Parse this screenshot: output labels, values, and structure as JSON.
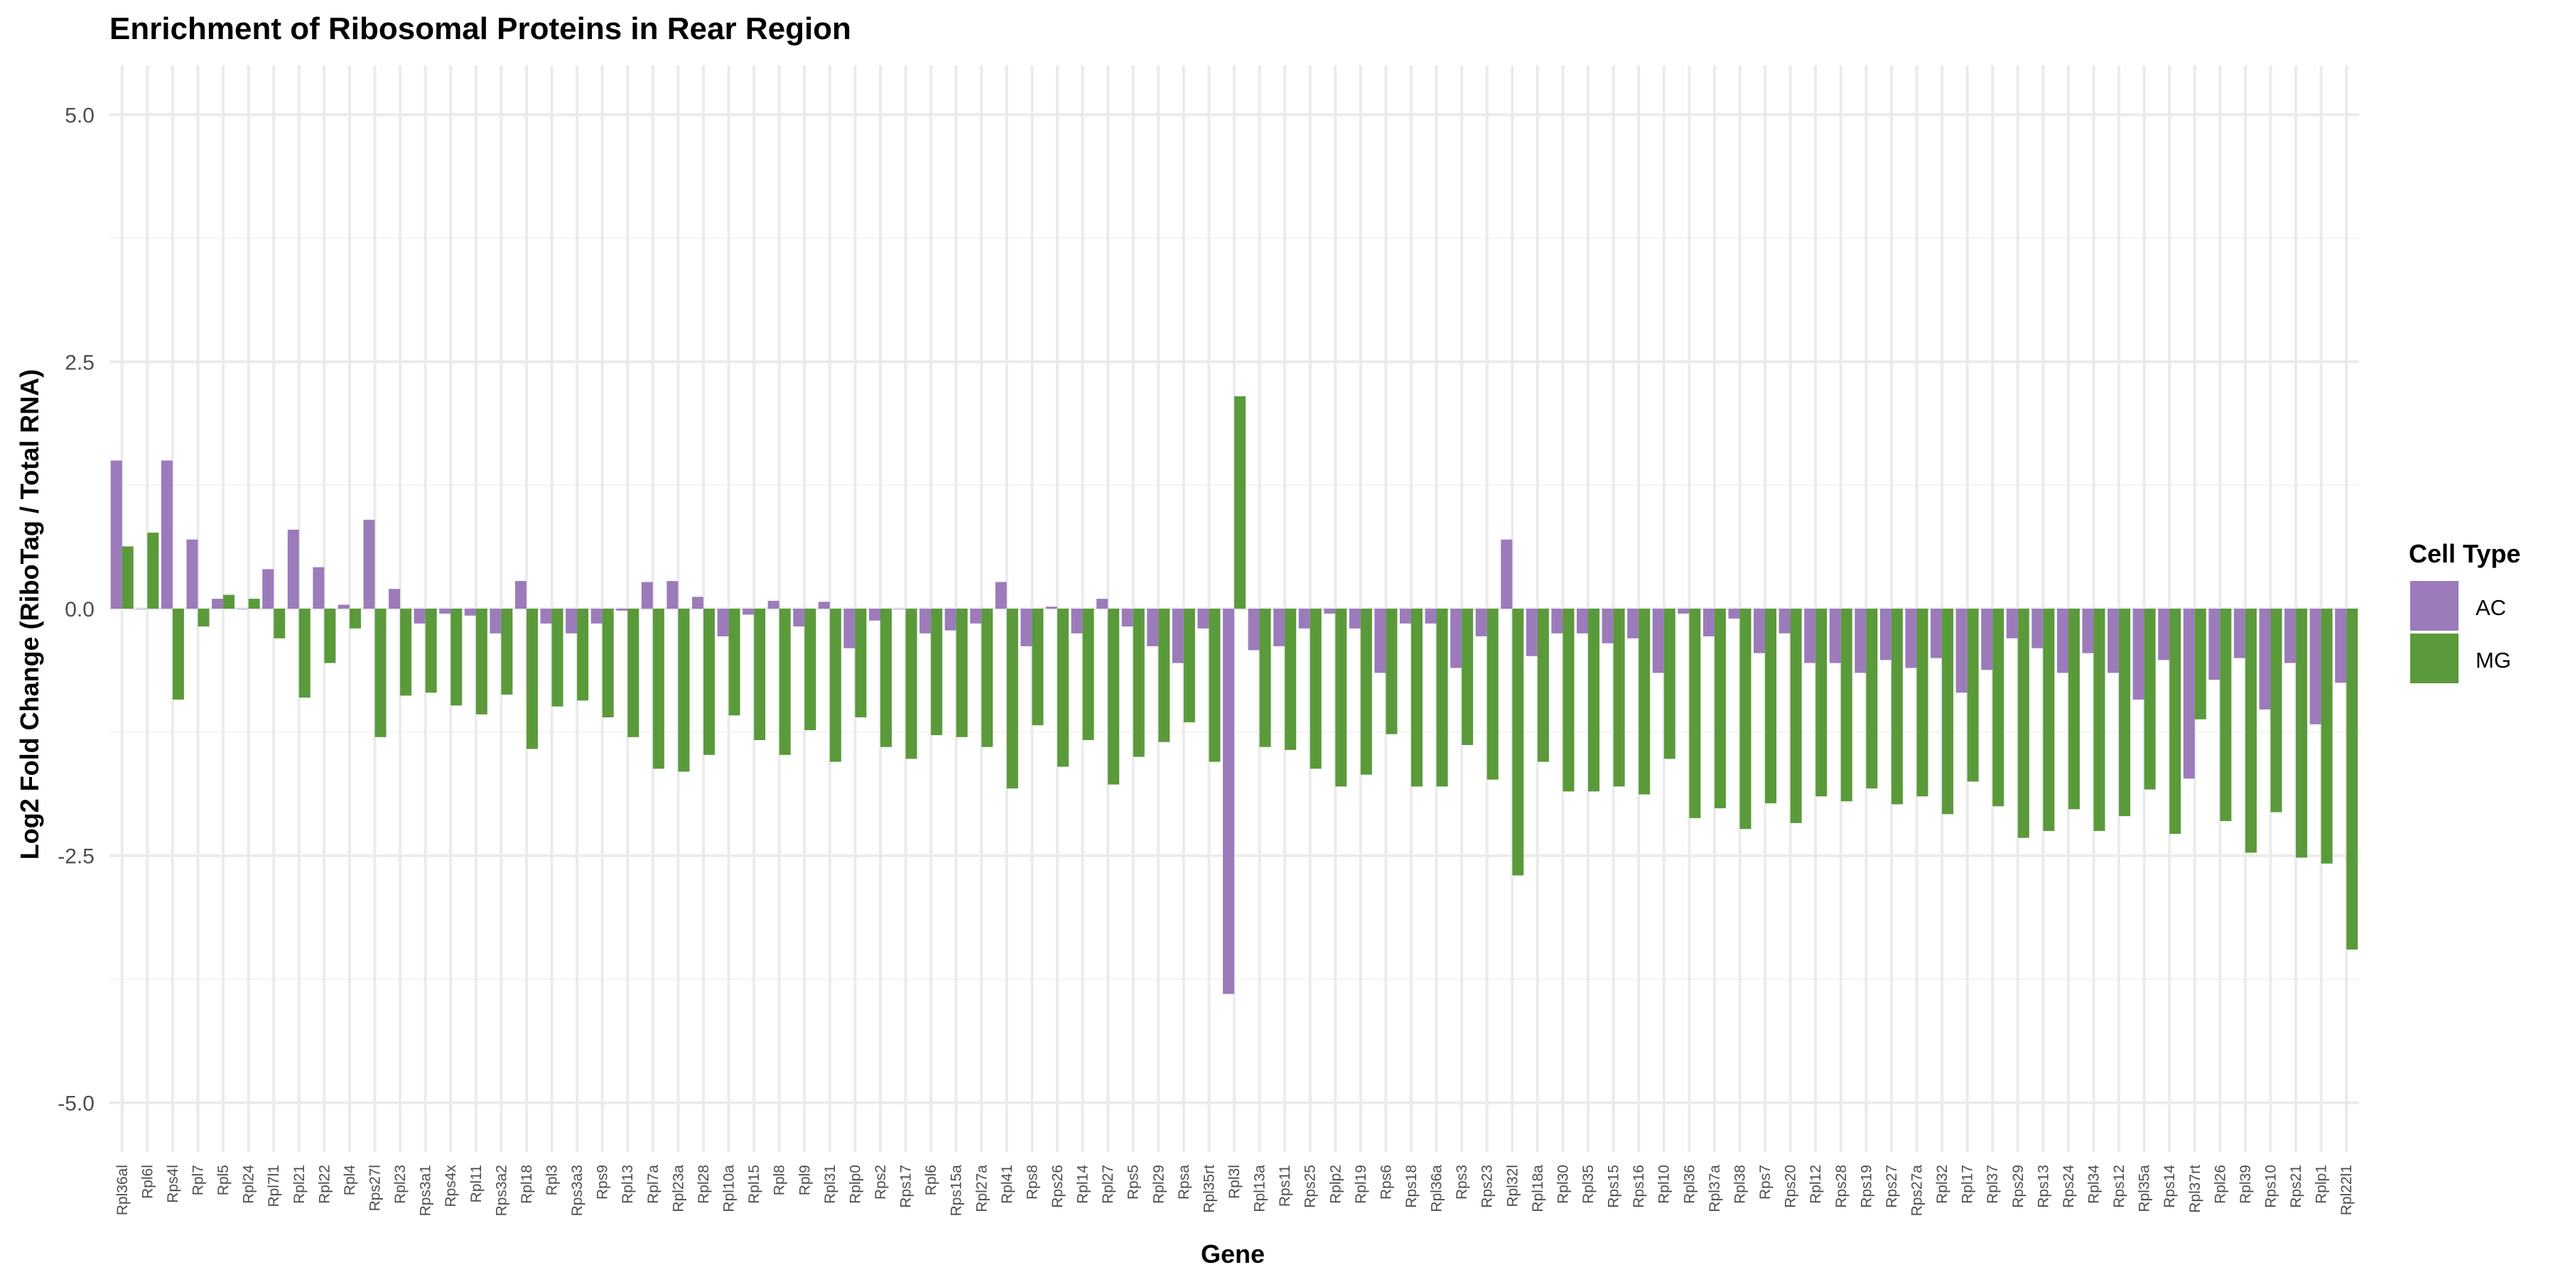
{
  "chart_data": {
    "type": "bar",
    "title": "Enrichment of Ribosomal Proteins in Rear Region",
    "xlabel": "Gene",
    "ylabel": "Log2 Fold Change (RiboTag / Total RNA)",
    "ylim": [
      -5.5,
      5.5
    ],
    "yticks": [
      5.0,
      2.5,
      0.0,
      -2.5,
      -5.0
    ],
    "ytick_labels": [
      "5.0",
      "2.5",
      "0.0",
      "-2.5",
      "-5.0"
    ],
    "grid": true,
    "legend": {
      "title": "Cell Type",
      "position": "right"
    },
    "colors": {
      "AC": "#9b7bba",
      "MG": "#5a9a3a",
      "grid_major": "#ebebeb",
      "grid_minor": "#f4f4f4",
      "text": "#4d4d4d"
    },
    "categories": [
      "Rpl36al",
      "Rpl6l",
      "Rps4l",
      "Rpl7",
      "Rpl5",
      "Rpl24",
      "Rpl7l1",
      "Rpl21",
      "Rpl22",
      "Rpl4",
      "Rps27l",
      "Rpl23",
      "Rps3a1",
      "Rps4x",
      "Rpl11",
      "Rps3a2",
      "Rpl18",
      "Rpl3",
      "Rps3a3",
      "Rps9",
      "Rpl13",
      "Rpl7a",
      "Rpl23a",
      "Rpl28",
      "Rpl10a",
      "Rpl15",
      "Rpl8",
      "Rpl9",
      "Rpl31",
      "Rplp0",
      "Rps2",
      "Rps17",
      "Rpl6",
      "Rps15a",
      "Rpl27a",
      "Rpl41",
      "Rps8",
      "Rps26",
      "Rpl14",
      "Rpl27",
      "Rps5",
      "Rpl29",
      "Rpsa",
      "Rpl35rt",
      "Rpl3l",
      "Rpl13a",
      "Rps11",
      "Rps25",
      "Rplp2",
      "Rpl19",
      "Rps6",
      "Rps18",
      "Rpl36a",
      "Rps3",
      "Rps23",
      "Rpl32l",
      "Rpl18a",
      "Rpl30",
      "Rpl35",
      "Rps15",
      "Rps16",
      "Rpl10",
      "Rpl36",
      "Rpl37a",
      "Rpl38",
      "Rps7",
      "Rps20",
      "Rpl12",
      "Rps28",
      "Rps19",
      "Rps27",
      "Rps27a",
      "Rpl32",
      "Rpl17",
      "Rpl37",
      "Rps29",
      "Rps13",
      "Rps24",
      "Rpl34",
      "Rps12",
      "Rpl35a",
      "Rps14",
      "Rpl37rt",
      "Rpl26",
      "Rpl39",
      "Rps10",
      "Rps21",
      "Rplp1",
      "Rpl22l1"
    ],
    "series": [
      {
        "name": "AC",
        "values": [
          1.5,
          0.0,
          1.5,
          0.7,
          0.1,
          0.0,
          0.4,
          0.8,
          0.42,
          0.04,
          0.9,
          0.2,
          -0.15,
          -0.05,
          -0.07,
          -0.25,
          0.28,
          -0.15,
          -0.25,
          -0.15,
          -0.02,
          0.27,
          0.28,
          0.12,
          -0.28,
          -0.06,
          0.08,
          -0.18,
          0.07,
          -0.4,
          -0.12,
          0.0,
          -0.25,
          -0.22,
          -0.15,
          0.27,
          -0.38,
          0.02,
          -0.25,
          0.1,
          -0.18,
          -0.38,
          -0.55,
          -0.2,
          -3.9,
          -0.42,
          -0.38,
          -0.2,
          -0.05,
          -0.2,
          -0.65,
          -0.15,
          -0.15,
          -0.6,
          -0.28,
          0.7,
          -0.48,
          -0.25,
          -0.25,
          -0.35,
          -0.3,
          -0.65,
          -0.05,
          -0.28,
          -0.1,
          -0.45,
          -0.25,
          -0.55,
          -0.55,
          -0.65,
          -0.52,
          -0.6,
          -0.5,
          -0.85,
          -0.62,
          -0.3,
          -0.4,
          -0.65,
          -0.45,
          -0.65,
          -0.92,
          -0.52,
          -1.72,
          -0.72,
          -0.5,
          -1.02,
          -0.55,
          -1.17,
          -0.75
        ]
      },
      {
        "name": "MG",
        "values": [
          0.63,
          0.77,
          -0.92,
          -0.18,
          0.14,
          0.1,
          -0.3,
          -0.9,
          -0.55,
          -0.2,
          -1.3,
          -0.88,
          -0.85,
          -0.98,
          -1.07,
          -0.87,
          -1.42,
          -0.99,
          -0.93,
          -1.1,
          -1.3,
          -1.62,
          -1.65,
          -1.48,
          -1.08,
          -1.33,
          -1.48,
          -1.23,
          -1.55,
          -1.1,
          -1.4,
          -1.52,
          -1.28,
          -1.3,
          -1.4,
          -1.82,
          -1.18,
          -1.6,
          -1.33,
          -1.78,
          -1.5,
          -1.35,
          -1.15,
          -1.55,
          2.15,
          -1.4,
          -1.43,
          -1.62,
          -1.8,
          -1.68,
          -1.27,
          -1.8,
          -1.8,
          -1.38,
          -1.73,
          -2.7,
          -1.55,
          -1.85,
          -1.85,
          -1.8,
          -1.88,
          -1.52,
          -2.12,
          -2.02,
          -2.23,
          -1.97,
          -2.17,
          -1.9,
          -1.95,
          -1.82,
          -1.98,
          -1.9,
          -2.08,
          -1.75,
          -2.0,
          -2.32,
          -2.25,
          -2.03,
          -2.25,
          -2.1,
          -1.83,
          -2.28,
          -1.12,
          -2.15,
          -2.47,
          -2.06,
          -2.52,
          -2.58,
          -3.45
        ]
      }
    ]
  }
}
